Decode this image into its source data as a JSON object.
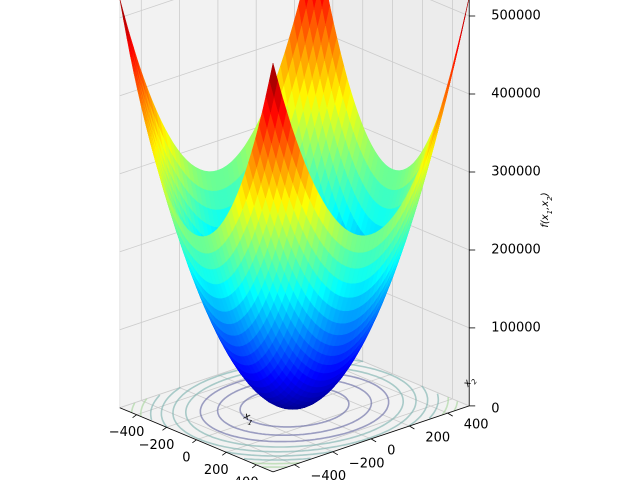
{
  "chart_data": {
    "type": "surface3d",
    "title": "",
    "function": "x1^2 + x2^2",
    "xlabel": "x1",
    "ylabel": "x2",
    "zlabel": "f(x1,x2)",
    "xlim": [
      -512,
      512
    ],
    "ylim": [
      -512,
      512
    ],
    "zlim": [
      0,
      524288
    ],
    "x_ticks": [
      "−400",
      "−200",
      "0",
      "200",
      "400"
    ],
    "x_tick_values": [
      -400,
      -200,
      0,
      200,
      400
    ],
    "y_ticks": [
      "−400",
      "−200",
      "0",
      "200",
      "400"
    ],
    "y_tick_values": [
      -400,
      -200,
      0,
      200,
      400
    ],
    "z_ticks": [
      "0",
      "100000",
      "200000",
      "300000",
      "400000",
      "500000"
    ],
    "z_tick_values": [
      0,
      100000,
      200000,
      300000,
      400000,
      500000
    ],
    "contour_levels": [
      50000,
      100000,
      150000,
      200000,
      250000,
      300000,
      350000,
      400000,
      450000,
      500000
    ],
    "colormap": "jet",
    "grid": true,
    "pane_color": "#f2f2f2",
    "grid_color": "#cccccc"
  }
}
